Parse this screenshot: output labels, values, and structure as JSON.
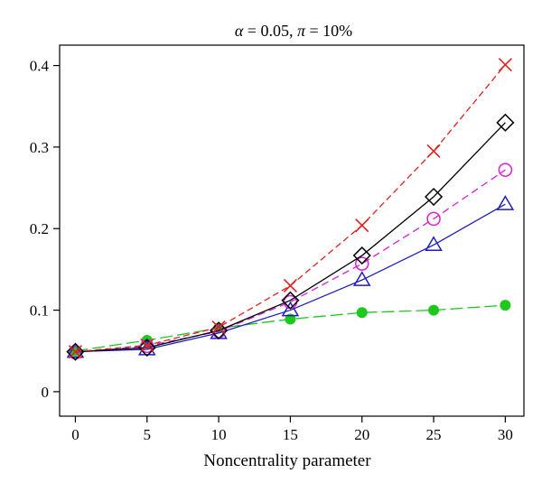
{
  "chart_data": {
    "type": "line",
    "title_parts": {
      "alpha_symbol": "α",
      "alpha_value": " = 0.05, ",
      "pi_symbol": "π",
      "pi_value": " = 10%"
    },
    "xlabel": "Noncentrality parameter",
    "ylabel": "",
    "x": [
      0,
      5,
      10,
      15,
      20,
      25,
      30
    ],
    "xlim": [
      -1.1,
      31.3
    ],
    "ylim": [
      -0.03,
      0.425
    ],
    "xticks": [
      "0",
      "5",
      "10",
      "15",
      "20",
      "25",
      "30"
    ],
    "yticks": [
      "0",
      "0.1",
      "0.2",
      "0.3",
      "0.4"
    ],
    "grid": false,
    "legend": "none",
    "series": [
      {
        "marker": "circle-filled",
        "color": "#1ec81e",
        "dash": "14,5",
        "values": [
          0.05,
          0.063,
          0.078,
          0.089,
          0.097,
          0.1,
          0.106
        ]
      },
      {
        "marker": "triangle",
        "color": "#1f1fc0",
        "dash": "none",
        "values": [
          0.049,
          0.052,
          0.072,
          0.1,
          0.137,
          0.18,
          0.23
        ]
      },
      {
        "marker": "circle-open",
        "color": "#d81ed8",
        "dash": "8,5",
        "values": [
          0.048,
          0.056,
          0.074,
          0.11,
          0.157,
          0.212,
          0.272
        ]
      },
      {
        "marker": "diamond",
        "color": "#000000",
        "dash": "none",
        "values": [
          0.049,
          0.054,
          0.075,
          0.112,
          0.167,
          0.239,
          0.33
        ]
      },
      {
        "marker": "cross",
        "color": "#e0201e",
        "dash": "7,4",
        "values": [
          0.049,
          0.057,
          0.079,
          0.13,
          0.204,
          0.295,
          0.401
        ]
      }
    ]
  }
}
